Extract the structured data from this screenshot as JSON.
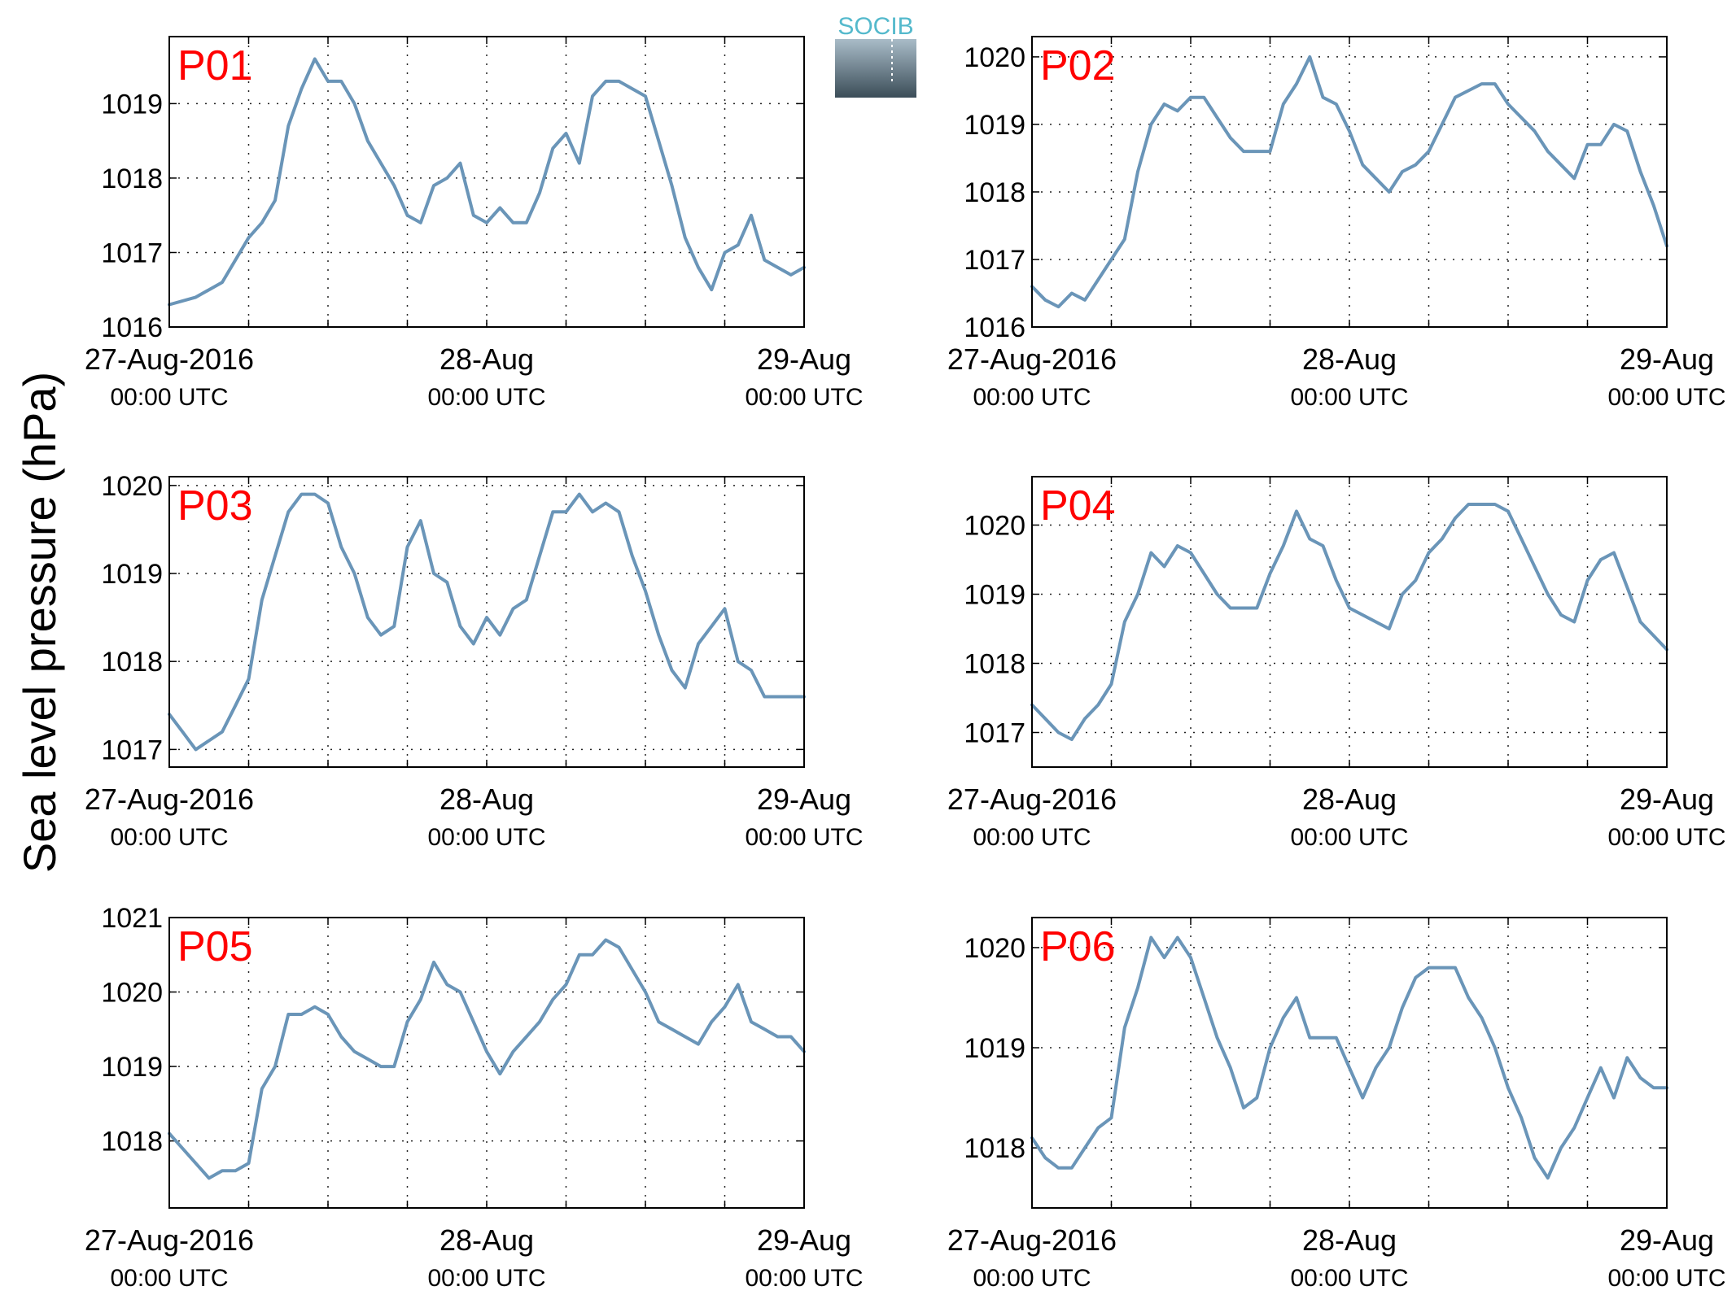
{
  "figure": {
    "ylabel": "Sea level pressure (hPa)",
    "logo_text": "SOCIB",
    "line_color": "#6a95b8",
    "label_color": "#ff0000"
  },
  "x_axis": {
    "range": [
      "27-Aug-2016 00:00 UTC",
      "29-Aug-2016 00:00 UTC"
    ],
    "ticks": [
      {
        "x": "27-Aug-2016 00:00 UTC",
        "line1": "27-Aug-2016",
        "line2": "00:00 UTC"
      },
      {
        "x": "28-Aug-2016 00:00 UTC",
        "line1": "28-Aug",
        "line2": "00:00 UTC"
      },
      {
        "x": "29-Aug-2016 00:00 UTC",
        "line1": "29-Aug",
        "line2": "00:00 UTC"
      }
    ],
    "grid_every_hours": 6
  },
  "chart_data": [
    {
      "type": "line",
      "label": "P01",
      "ylim": [
        1016,
        1019.9
      ],
      "yticks": [
        1016,
        1017,
        1018,
        1019
      ],
      "grid": true,
      "series": [
        {
          "hours": [
            0,
            2,
            3,
            4,
            6,
            7,
            8,
            9,
            10,
            11,
            12,
            13,
            14,
            15,
            16,
            17,
            18,
            19,
            20,
            21,
            22,
            23,
            24,
            25,
            26,
            27,
            28,
            29,
            30,
            31,
            32,
            33,
            34,
            35,
            36,
            37,
            38,
            39,
            40,
            41,
            42,
            43,
            44,
            45,
            46,
            47,
            48
          ],
          "values": [
            1016.3,
            1016.4,
            1016.5,
            1016.6,
            1017.2,
            1017.4,
            1017.7,
            1018.7,
            1019.2,
            1019.6,
            1019.3,
            1019.3,
            1019.0,
            1018.5,
            1018.2,
            1017.9,
            1017.5,
            1017.4,
            1017.9,
            1018.0,
            1018.2,
            1017.5,
            1017.4,
            1017.6,
            1017.4,
            1017.4,
            1017.8,
            1018.4,
            1018.6,
            1018.2,
            1019.1,
            1019.3,
            1019.3,
            1019.2,
            1019.1,
            1018.5,
            1017.9,
            1017.2,
            1016.8,
            1016.5,
            1017.0,
            1017.1,
            1017.5,
            1016.9,
            1016.8,
            1016.7,
            1016.8
          ]
        }
      ]
    },
    {
      "type": "line",
      "label": "P02",
      "ylim": [
        1016,
        1020.3
      ],
      "yticks": [
        1016,
        1017,
        1018,
        1019,
        1020
      ],
      "grid": true,
      "series": [
        {
          "hours": [
            0,
            1,
            2,
            3,
            4,
            5,
            6,
            7,
            8,
            9,
            10,
            11,
            12,
            13,
            14,
            15,
            16,
            17,
            18,
            19,
            20,
            21,
            22,
            23,
            24,
            25,
            26,
            27,
            28,
            29,
            30,
            31,
            32,
            33,
            34,
            35,
            36,
            37,
            38,
            39,
            40,
            41,
            42,
            43,
            44,
            45,
            46,
            47,
            48
          ],
          "values": [
            1016.6,
            1016.4,
            1016.3,
            1016.5,
            1016.4,
            1016.7,
            1017.0,
            1017.3,
            1018.3,
            1019.0,
            1019.3,
            1019.2,
            1019.4,
            1019.4,
            1019.1,
            1018.8,
            1018.6,
            1018.6,
            1018.6,
            1019.3,
            1019.6,
            1020.0,
            1019.4,
            1019.3,
            1018.9,
            1018.4,
            1018.2,
            1018.0,
            1018.3,
            1018.4,
            1018.6,
            1019.0,
            1019.4,
            1019.5,
            1019.6,
            1019.6,
            1019.3,
            1019.1,
            1018.9,
            1018.6,
            1018.4,
            1018.2,
            1018.7,
            1018.7,
            1019.0,
            1018.9,
            1018.3,
            1017.8,
            1017.2
          ]
        }
      ]
    },
    {
      "type": "line",
      "label": "P03",
      "ylim": [
        1016.8,
        1020.1
      ],
      "yticks": [
        1017,
        1018,
        1019,
        1020
      ],
      "grid": true,
      "series": [
        {
          "hours": [
            0,
            1,
            2,
            3,
            4,
            5,
            6,
            7,
            8,
            9,
            10,
            11,
            12,
            13,
            14,
            15,
            16,
            17,
            18,
            19,
            20,
            21,
            22,
            23,
            24,
            25,
            26,
            27,
            28,
            29,
            30,
            31,
            32,
            33,
            34,
            35,
            36,
            37,
            38,
            39,
            40,
            41,
            42,
            43,
            44,
            45,
            46,
            47,
            48
          ],
          "values": [
            1017.4,
            1017.2,
            1017.0,
            1017.1,
            1017.2,
            1017.5,
            1017.8,
            1018.7,
            1019.2,
            1019.7,
            1019.9,
            1019.9,
            1019.8,
            1019.3,
            1019.0,
            1018.5,
            1018.3,
            1018.4,
            1019.3,
            1019.6,
            1019.0,
            1018.9,
            1018.4,
            1018.2,
            1018.5,
            1018.3,
            1018.6,
            1018.7,
            1019.2,
            1019.7,
            1019.7,
            1019.9,
            1019.7,
            1019.8,
            1019.7,
            1019.2,
            1018.8,
            1018.3,
            1017.9,
            1017.7,
            1018.2,
            1018.4,
            1018.6,
            1018.0,
            1017.9,
            1017.6,
            1017.6,
            1017.6,
            1017.6
          ]
        }
      ]
    },
    {
      "type": "line",
      "label": "P04",
      "ylim": [
        1016.5,
        1020.7
      ],
      "yticks": [
        1017,
        1018,
        1019,
        1020
      ],
      "grid": true,
      "series": [
        {
          "hours": [
            0,
            1,
            2,
            3,
            4,
            5,
            6,
            7,
            8,
            9,
            10,
            11,
            12,
            13,
            14,
            15,
            16,
            17,
            18,
            19,
            20,
            21,
            22,
            23,
            24,
            25,
            26,
            27,
            28,
            29,
            30,
            31,
            32,
            33,
            34,
            35,
            36,
            37,
            38,
            39,
            40,
            41,
            42,
            43,
            44,
            45,
            46,
            47,
            48
          ],
          "values": [
            1017.4,
            1017.2,
            1017.0,
            1016.9,
            1017.2,
            1017.4,
            1017.7,
            1018.6,
            1019.0,
            1019.6,
            1019.4,
            1019.7,
            1019.6,
            1019.3,
            1019.0,
            1018.8,
            1018.8,
            1018.8,
            1019.3,
            1019.7,
            1020.2,
            1019.8,
            1019.7,
            1019.2,
            1018.8,
            1018.7,
            1018.6,
            1018.5,
            1019.0,
            1019.2,
            1019.6,
            1019.8,
            1020.1,
            1020.3,
            1020.3,
            1020.3,
            1020.2,
            1019.8,
            1019.4,
            1019.0,
            1018.7,
            1018.6,
            1019.2,
            1019.5,
            1019.6,
            1019.1,
            1018.6,
            1018.4,
            1018.2
          ]
        }
      ]
    },
    {
      "type": "line",
      "label": "P05",
      "ylim": [
        1017.1,
        1021.0
      ],
      "yticks": [
        1018,
        1019,
        1020,
        1021
      ],
      "grid": true,
      "series": [
        {
          "hours": [
            0,
            1,
            2,
            3,
            4,
            5,
            6,
            7,
            8,
            9,
            10,
            11,
            12,
            13,
            14,
            15,
            16,
            17,
            18,
            19,
            20,
            21,
            22,
            23,
            24,
            25,
            26,
            27,
            28,
            29,
            30,
            31,
            32,
            33,
            34,
            35,
            36,
            37,
            38,
            39,
            40,
            41,
            42,
            43,
            44,
            45,
            46,
            47,
            48
          ],
          "values": [
            1018.1,
            1017.9,
            1017.7,
            1017.5,
            1017.6,
            1017.6,
            1017.7,
            1018.7,
            1019.0,
            1019.7,
            1019.7,
            1019.8,
            1019.7,
            1019.4,
            1019.2,
            1019.1,
            1019.0,
            1019.0,
            1019.6,
            1019.9,
            1020.4,
            1020.1,
            1020.0,
            1019.6,
            1019.2,
            1018.9,
            1019.2,
            1019.4,
            1019.6,
            1019.9,
            1020.1,
            1020.5,
            1020.5,
            1020.7,
            1020.6,
            1020.3,
            1020.0,
            1019.6,
            1019.5,
            1019.4,
            1019.3,
            1019.6,
            1019.8,
            1020.1,
            1019.6,
            1019.5,
            1019.4,
            1019.4,
            1019.2
          ]
        }
      ]
    },
    {
      "type": "line",
      "label": "P06",
      "ylim": [
        1017.4,
        1020.3
      ],
      "yticks": [
        1018,
        1019,
        1020
      ],
      "grid": true,
      "series": [
        {
          "hours": [
            0,
            1,
            2,
            3,
            4,
            5,
            6,
            7,
            8,
            9,
            10,
            11,
            12,
            13,
            14,
            15,
            16,
            17,
            18,
            19,
            20,
            21,
            22,
            23,
            24,
            25,
            26,
            27,
            28,
            29,
            30,
            31,
            32,
            33,
            34,
            35,
            36,
            37,
            38,
            39,
            40,
            41,
            42,
            43,
            44,
            45,
            46,
            47,
            48
          ],
          "values": [
            1018.1,
            1017.9,
            1017.8,
            1017.8,
            1018.0,
            1018.2,
            1018.3,
            1019.2,
            1019.6,
            1020.1,
            1019.9,
            1020.1,
            1019.9,
            1019.5,
            1019.1,
            1018.8,
            1018.4,
            1018.5,
            1019.0,
            1019.3,
            1019.5,
            1019.1,
            1019.1,
            1019.1,
            1018.8,
            1018.5,
            1018.8,
            1019.0,
            1019.4,
            1019.7,
            1019.8,
            1019.8,
            1019.8,
            1019.5,
            1019.3,
            1019.0,
            1018.6,
            1018.3,
            1017.9,
            1017.7,
            1018.0,
            1018.2,
            1018.5,
            1018.8,
            1018.5,
            1018.9,
            1018.7,
            1018.6,
            1018.6
          ]
        }
      ]
    }
  ]
}
